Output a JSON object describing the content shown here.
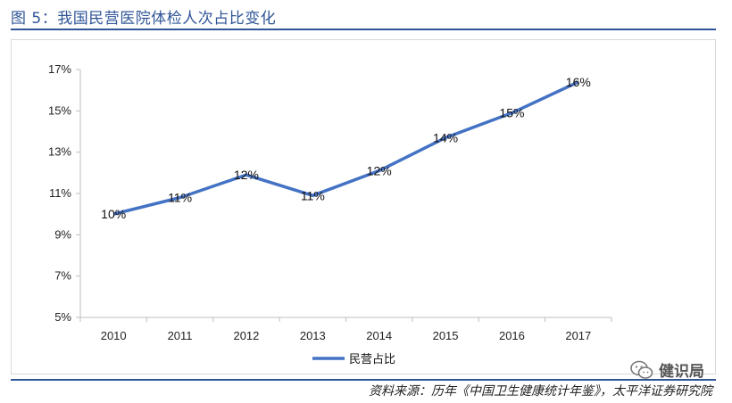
{
  "figure": {
    "title": "图 5：我国民营医院体检人次占比变化",
    "source": "资料来源：历年《中国卫生健康统计年鉴》，太平洋证券研究院"
  },
  "watermark": {
    "text": "健识局",
    "icon": "wechat-icon"
  },
  "colors": {
    "accent": "#2f5597",
    "series": "#4472c4",
    "axis": "#bfbfbf"
  },
  "chart_data": {
    "type": "line",
    "title": "",
    "xlabel": "",
    "ylabel": "",
    "categories": [
      "2010",
      "2011",
      "2012",
      "2013",
      "2014",
      "2015",
      "2016",
      "2017"
    ],
    "series": [
      {
        "name": "民营占比",
        "values": [
          10,
          10.8,
          11.9,
          10.9,
          12.1,
          13.7,
          14.9,
          16.4
        ],
        "labels": [
          "10%",
          "11%",
          "12%",
          "11%",
          "12%",
          "14%",
          "15%",
          "16%"
        ]
      }
    ],
    "ylim": [
      5,
      17
    ],
    "yticks": [
      5,
      7,
      9,
      11,
      13,
      15,
      17
    ],
    "ytick_labels": [
      "5%",
      "7%",
      "9%",
      "11%",
      "13%",
      "15%",
      "17%"
    ],
    "grid": false,
    "legend": "bottom-center"
  }
}
